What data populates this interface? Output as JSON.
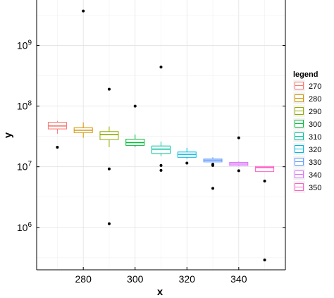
{
  "chart_data": {
    "type": "box",
    "xlabel": "x",
    "ylabel": "y",
    "y_scale": "log10",
    "xlim": [
      262,
      358
    ],
    "ylim_log10": [
      5.3,
      9.75
    ],
    "x_ticks": [
      280,
      300,
      320,
      340
    ],
    "y_ticks": [
      {
        "base": "10",
        "exp": "6",
        "log10": 6
      },
      {
        "base": "10",
        "exp": "7",
        "log10": 7
      },
      {
        "base": "10",
        "exp": "8",
        "log10": 8
      },
      {
        "base": "10",
        "exp": "9",
        "log10": 9
      }
    ],
    "grid": true,
    "legend": {
      "title": "legend",
      "position": "right"
    },
    "series": [
      {
        "name": "270",
        "x": 270,
        "color": "#F8766D",
        "whisker_low": 35000000,
        "q1": 42000000,
        "median": 47000000,
        "q3": 54000000,
        "whisker_high": 57000000,
        "outliers": [
          21000000
        ]
      },
      {
        "name": "280",
        "x": 280,
        "color": "#D39200",
        "whisker_low": 30000000,
        "q1": 36500000,
        "median": 40000000,
        "q3": 44000000,
        "whisker_high": 54000000,
        "outliers": [
          3700000000
        ]
      },
      {
        "name": "290",
        "x": 290,
        "color": "#93AA00",
        "whisker_low": 21000000,
        "q1": 28000000,
        "median": 34000000,
        "q3": 38000000,
        "whisker_high": 46000000,
        "outliers": [
          190000000,
          9200000,
          1150000
        ]
      },
      {
        "name": "300",
        "x": 300,
        "color": "#00BA38",
        "whisker_low": 21000000,
        "q1": 22500000,
        "median": 25000000,
        "q3": 28500000,
        "whisker_high": 34000000,
        "outliers": [
          100000000
        ]
      },
      {
        "name": "310",
        "x": 310,
        "color": "#00C19F",
        "whisker_low": 15000000,
        "q1": 16500000,
        "median": 19500000,
        "q3": 22000000,
        "whisker_high": 26000000,
        "outliers": [
          440000000,
          10500000,
          8700000
        ]
      },
      {
        "name": "320",
        "x": 320,
        "color": "#00B9E3",
        "whisker_low": 13500000,
        "q1": 14300000,
        "median": 16000000,
        "q3": 17500000,
        "whisker_high": 20500000,
        "outliers": [
          11500000
        ]
      },
      {
        "name": "330",
        "x": 330,
        "color": "#619CFF",
        "whisker_low": 11800000,
        "q1": 12000000,
        "median": 12800000,
        "q3": 13400000,
        "whisker_high": 14400000,
        "outliers": [
          11000000,
          10500000,
          4400000
        ]
      },
      {
        "name": "340",
        "x": 340,
        "color": "#DB72FB",
        "whisker_low": 10200000,
        "q1": 10500000,
        "median": 11100000,
        "q3": 11800000,
        "whisker_high": 12200000,
        "outliers": [
          30000000,
          8600000
        ]
      },
      {
        "name": "350",
        "x": 350,
        "color": "#FF61C3",
        "whisker_low": 8200000,
        "q1": 8300000,
        "median": 9700000,
        "q3": 10100000,
        "whisker_high": 10200000,
        "outliers": [
          5800000,
          290000
        ]
      }
    ]
  }
}
